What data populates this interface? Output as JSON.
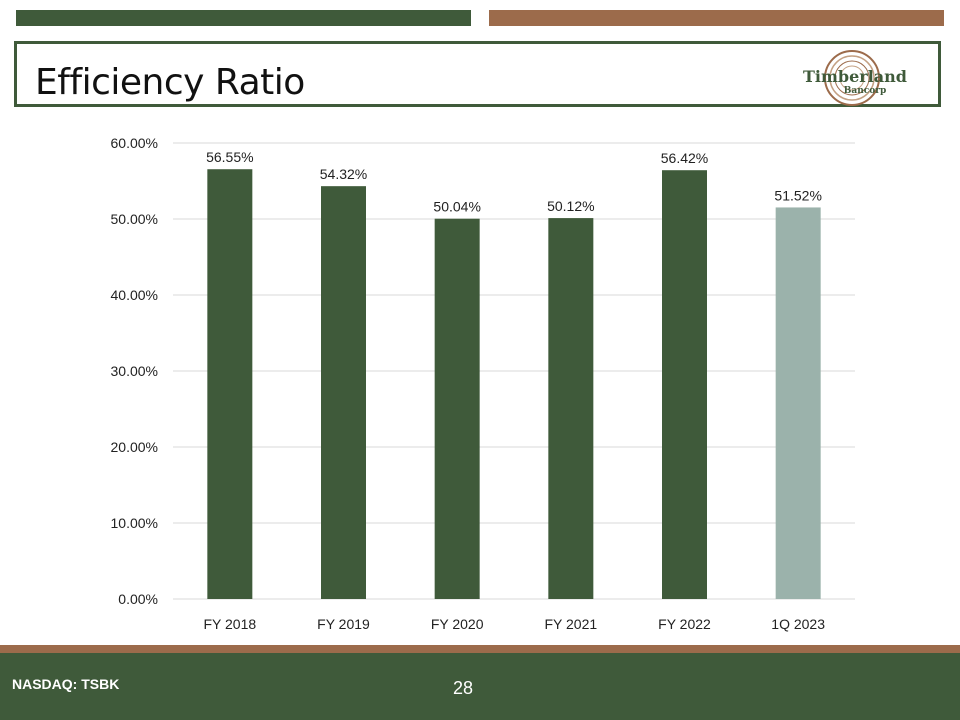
{
  "slide": {
    "title": "Efficiency Ratio",
    "logo": {
      "name": "Timberland",
      "sub": "Bancorp"
    },
    "footer": {
      "ticker": "NASDAQ: TSBK",
      "page_number": "28"
    }
  },
  "colors": {
    "dark_green": "#3f5a3a",
    "brown": "#9c6b4b",
    "light_bar": "#9bb2ab",
    "gridline": "#d9d9d9"
  },
  "chart_data": {
    "type": "bar",
    "categories": [
      "FY 2018",
      "FY 2019",
      "FY 2020",
      "FY 2021",
      "FY 2022",
      "1Q 2023"
    ],
    "values": [
      56.55,
      54.32,
      50.04,
      50.12,
      56.42,
      51.52
    ],
    "data_labels": [
      "56.55%",
      "54.32%",
      "50.04%",
      "50.12%",
      "56.42%",
      "51.52%"
    ],
    "bar_colors": [
      "#3f5a3a",
      "#3f5a3a",
      "#3f5a3a",
      "#3f5a3a",
      "#3f5a3a",
      "#9bb2ab"
    ],
    "ylim": [
      0,
      60
    ],
    "yticks": [
      0,
      10,
      20,
      30,
      40,
      50,
      60
    ],
    "ytick_labels": [
      "0.00%",
      "10.00%",
      "20.00%",
      "30.00%",
      "40.00%",
      "50.00%",
      "60.00%"
    ],
    "grid": true,
    "legend": "none",
    "title": "",
    "xlabel": "",
    "ylabel": ""
  }
}
